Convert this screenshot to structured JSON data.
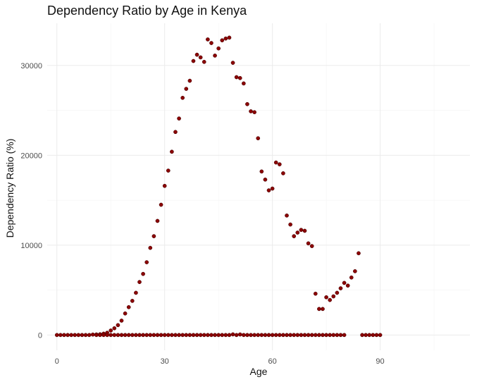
{
  "chart_data": {
    "type": "scatter",
    "title": "Dependency Ratio by Age in Kenya",
    "xlabel": "Age",
    "ylabel": "Dependency Ratio (%)",
    "xlim": [
      -2.7,
      115
    ],
    "ylim": [
      -1700,
      34700
    ],
    "x_ticks": [
      0,
      30,
      60,
      90
    ],
    "y_ticks": [
      0,
      10000,
      20000,
      30000
    ],
    "x_tick_labels": [
      "0",
      "30",
      "60",
      "90"
    ],
    "y_tick_labels": [
      "0",
      "10000",
      "20000",
      "30000"
    ],
    "grid": true,
    "point_color": "#8b0000",
    "series": [
      {
        "points": [
          [
            0,
            0
          ],
          [
            1,
            0
          ],
          [
            2,
            0
          ],
          [
            3,
            0
          ],
          [
            4,
            0
          ],
          [
            5,
            0
          ],
          [
            6,
            0
          ],
          [
            7,
            0
          ],
          [
            8,
            0
          ],
          [
            9,
            0
          ],
          [
            10,
            50
          ],
          [
            11,
            60
          ],
          [
            12,
            80
          ],
          [
            13,
            150
          ],
          [
            14,
            250
          ],
          [
            15,
            500
          ],
          [
            16,
            750
          ],
          [
            17,
            1100
          ],
          [
            18,
            1600
          ],
          [
            19,
            2400
          ],
          [
            20,
            3100
          ],
          [
            21,
            3800
          ],
          [
            22,
            4700
          ],
          [
            23,
            5900
          ],
          [
            24,
            6800
          ],
          [
            25,
            8100
          ],
          [
            26,
            9700
          ],
          [
            27,
            11000
          ],
          [
            28,
            12700
          ],
          [
            29,
            14500
          ],
          [
            30,
            16600
          ],
          [
            31,
            18300
          ],
          [
            32,
            20400
          ],
          [
            33,
            22600
          ],
          [
            34,
            24100
          ],
          [
            35,
            26400
          ],
          [
            36,
            27400
          ],
          [
            37,
            28300
          ],
          [
            38,
            30500
          ],
          [
            39,
            31200
          ],
          [
            40,
            30900
          ],
          [
            41,
            30400
          ],
          [
            42,
            32900
          ],
          [
            43,
            32500
          ],
          [
            44,
            31100
          ],
          [
            45,
            31900
          ],
          [
            46,
            32800
          ],
          [
            47,
            33000
          ],
          [
            48,
            33100
          ],
          [
            49,
            30300
          ],
          [
            50,
            28700
          ],
          [
            51,
            28600
          ],
          [
            52,
            28000
          ],
          [
            53,
            25700
          ],
          [
            54,
            24900
          ],
          [
            55,
            24800
          ],
          [
            56,
            21900
          ],
          [
            57,
            18200
          ],
          [
            58,
            17300
          ],
          [
            59,
            16100
          ],
          [
            60,
            16300
          ],
          [
            61,
            19200
          ],
          [
            62,
            19000
          ],
          [
            63,
            18000
          ],
          [
            64,
            13300
          ],
          [
            65,
            12300
          ],
          [
            66,
            11000
          ],
          [
            67,
            11400
          ],
          [
            68,
            11700
          ],
          [
            69,
            11600
          ],
          [
            70,
            10200
          ],
          [
            71,
            9900
          ],
          [
            72,
            4600
          ],
          [
            73,
            2900
          ],
          [
            74,
            2900
          ],
          [
            75,
            4200
          ],
          [
            76,
            3900
          ],
          [
            77,
            4300
          ],
          [
            78,
            4700
          ],
          [
            79,
            5200
          ],
          [
            80,
            5800
          ],
          [
            81,
            5500
          ],
          [
            82,
            6400
          ],
          [
            83,
            7100
          ],
          [
            84,
            9100
          ],
          [
            11,
            0
          ],
          [
            12,
            0
          ],
          [
            13,
            0
          ],
          [
            14,
            0
          ],
          [
            15,
            0
          ],
          [
            16,
            0
          ],
          [
            17,
            0
          ],
          [
            18,
            0
          ],
          [
            19,
            0
          ],
          [
            20,
            0
          ],
          [
            21,
            0
          ],
          [
            22,
            0
          ],
          [
            23,
            0
          ],
          [
            24,
            0
          ],
          [
            25,
            0
          ],
          [
            26,
            0
          ],
          [
            27,
            0
          ],
          [
            28,
            0
          ],
          [
            29,
            0
          ],
          [
            30,
            0
          ],
          [
            31,
            0
          ],
          [
            32,
            0
          ],
          [
            33,
            0
          ],
          [
            34,
            0
          ],
          [
            35,
            0
          ],
          [
            36,
            0
          ],
          [
            37,
            0
          ],
          [
            38,
            0
          ],
          [
            39,
            0
          ],
          [
            40,
            0
          ],
          [
            41,
            0
          ],
          [
            42,
            0
          ],
          [
            43,
            0
          ],
          [
            44,
            0
          ],
          [
            45,
            0
          ],
          [
            46,
            0
          ],
          [
            47,
            0
          ],
          [
            48,
            0
          ],
          [
            49,
            70
          ],
          [
            50,
            0
          ],
          [
            51,
            60
          ],
          [
            52,
            0
          ],
          [
            53,
            0
          ],
          [
            54,
            0
          ],
          [
            55,
            0
          ],
          [
            56,
            0
          ],
          [
            57,
            0
          ],
          [
            58,
            0
          ],
          [
            59,
            0
          ],
          [
            60,
            0
          ],
          [
            61,
            0
          ],
          [
            62,
            0
          ],
          [
            63,
            0
          ],
          [
            64,
            0
          ],
          [
            65,
            0
          ],
          [
            66,
            0
          ],
          [
            67,
            0
          ],
          [
            68,
            0
          ],
          [
            69,
            0
          ],
          [
            70,
            0
          ],
          [
            71,
            0
          ],
          [
            72,
            0
          ],
          [
            73,
            0
          ],
          [
            74,
            0
          ],
          [
            75,
            0
          ],
          [
            76,
            0
          ],
          [
            77,
            0
          ],
          [
            78,
            0
          ],
          [
            79,
            0
          ],
          [
            80,
            0
          ],
          [
            85,
            0
          ],
          [
            86,
            0
          ],
          [
            87,
            0
          ],
          [
            88,
            0
          ],
          [
            89,
            0
          ],
          [
            90,
            0
          ]
        ]
      }
    ]
  }
}
